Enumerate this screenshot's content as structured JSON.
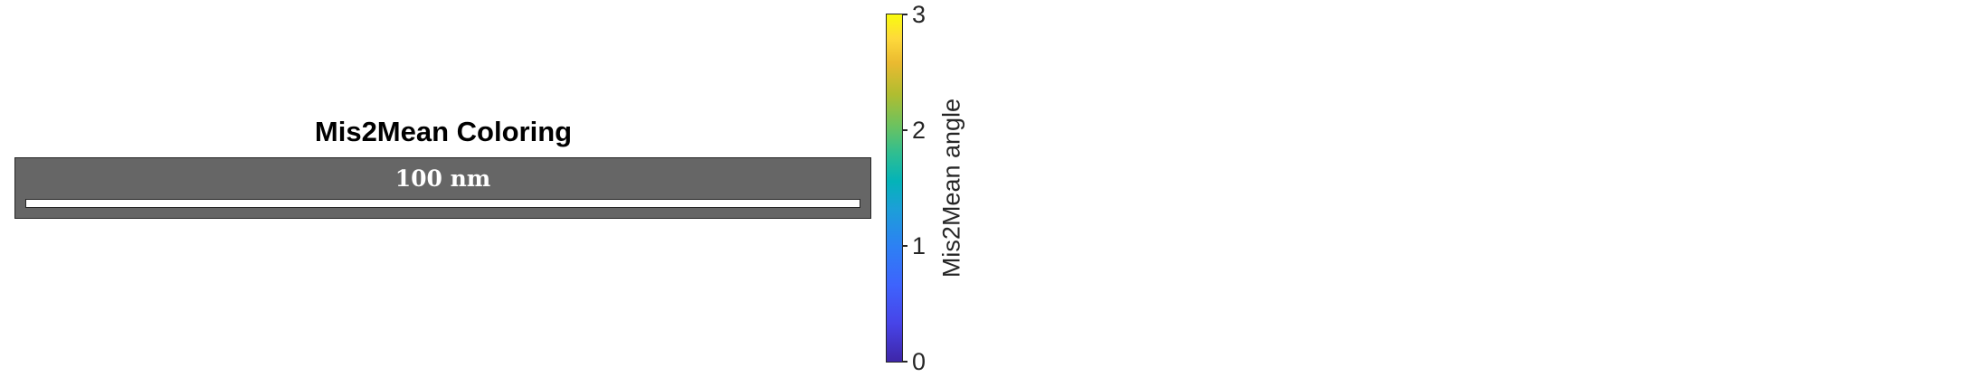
{
  "chart_data": {
    "type": "heatmap",
    "title": "Mis2Mean Coloring",
    "scale_bar": {
      "label": "100 nm",
      "length": 100,
      "unit": "nm"
    },
    "colorbar": {
      "label": "Mis2Mean angle",
      "range": [
        0,
        3
      ],
      "ticks": [
        {
          "value": 0,
          "label": "0"
        },
        {
          "value": 1,
          "label": "1"
        },
        {
          "value": 2,
          "label": "2"
        },
        {
          "value": 3,
          "label": "3"
        }
      ],
      "colormap": "parula",
      "colors": [
        "#3e26a8",
        "#2d80f4",
        "#04b3b8",
        "#6cc25f",
        "#eaba30",
        "#f9fb0e"
      ]
    },
    "map_background_color": "#666666"
  }
}
